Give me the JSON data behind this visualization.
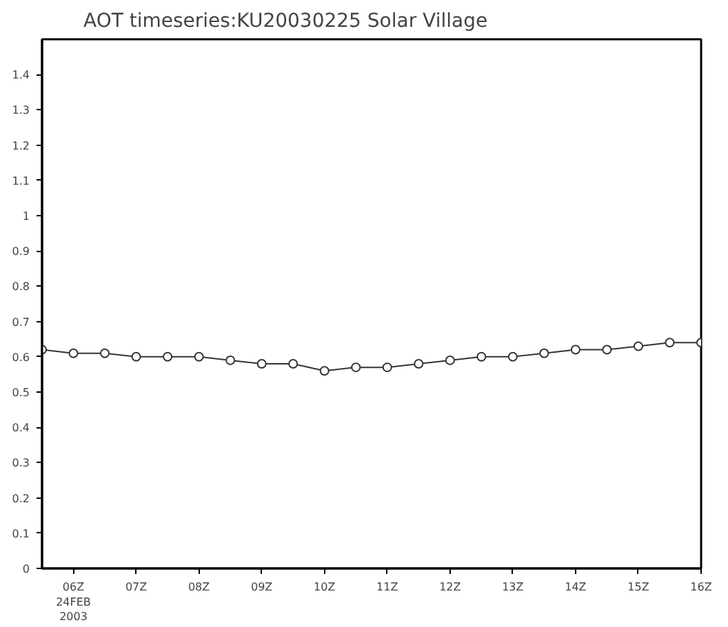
{
  "chart_data": {
    "type": "line",
    "title": "AOT timeseries:KU20030225 Solar Village",
    "x": [
      5.5,
      6,
      6.5,
      7,
      7.5,
      8,
      8.5,
      9,
      9.5,
      10,
      10.5,
      11,
      11.5,
      12,
      12.5,
      13,
      13.5,
      14,
      14.5,
      15,
      15.5,
      16
    ],
    "values": [
      0.62,
      0.61,
      0.61,
      0.6,
      0.6,
      0.6,
      0.59,
      0.58,
      0.58,
      0.56,
      0.57,
      0.57,
      0.58,
      0.59,
      0.6,
      0.6,
      0.61,
      0.62,
      0.62,
      0.63,
      0.64,
      0.64
    ],
    "color": "#333333",
    "marker": "circle",
    "line_style": "solid",
    "grid": false,
    "xlim": [
      5.5,
      16
    ],
    "xticks": [
      {
        "value": 6,
        "label": "06Z\n24FEB\n2003"
      },
      {
        "value": 7,
        "label": "07Z"
      },
      {
        "value": 8,
        "label": "08Z"
      },
      {
        "value": 9,
        "label": "09Z"
      },
      {
        "value": 10,
        "label": "10Z"
      },
      {
        "value": 11,
        "label": "11Z"
      },
      {
        "value": 12,
        "label": "12Z"
      },
      {
        "value": 13,
        "label": "13Z"
      },
      {
        "value": 14,
        "label": "14Z"
      },
      {
        "value": 15,
        "label": "15Z"
      },
      {
        "value": 16,
        "label": "16Z"
      }
    ],
    "ylim": [
      0,
      1.5
    ],
    "yticks": [
      0,
      0.1,
      0.2,
      0.3,
      0.4,
      0.5,
      0.6,
      0.7,
      0.8,
      0.9,
      1,
      1.1,
      1.2,
      1.3,
      1.4
    ]
  }
}
